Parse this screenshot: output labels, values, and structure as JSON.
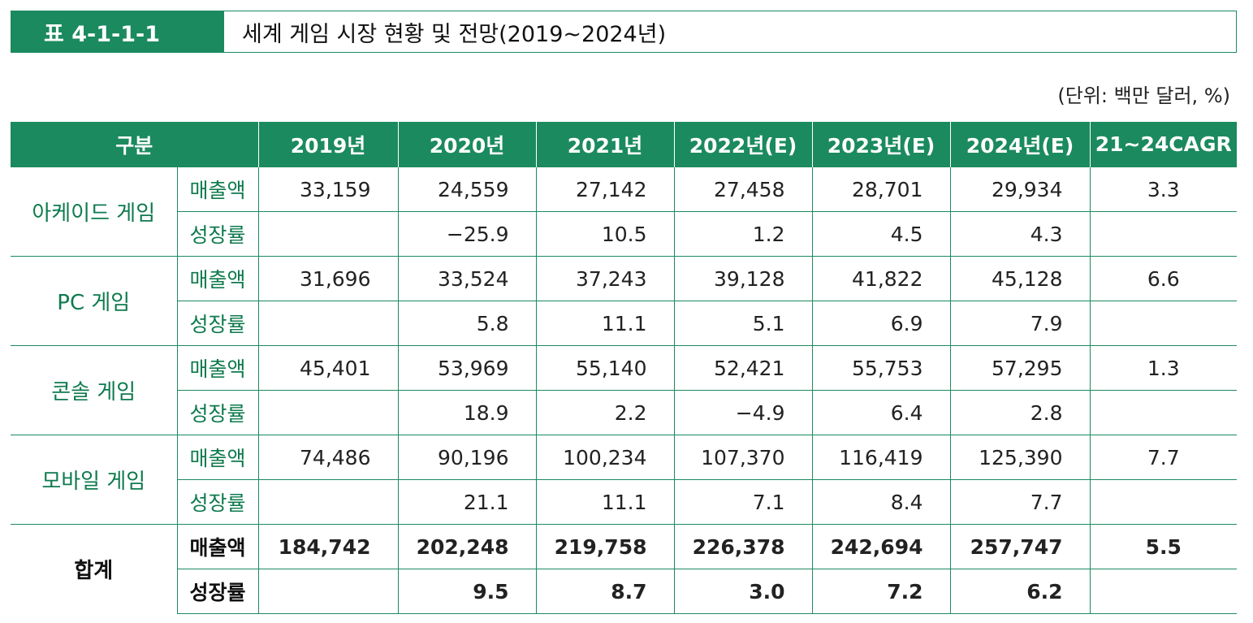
{
  "header": {
    "label": "표 4-1-1-1",
    "title": "세계 게임 시장 현황 및 전망(2019~2024년)",
    "unit": "(단위: 백만 달러, %)"
  },
  "table": {
    "columns": [
      "구분",
      "2019년",
      "2020년",
      "2021년",
      "2022년(E)",
      "2023년(E)",
      "2024년(E)",
      "21~24CAGR"
    ],
    "groups": [
      {
        "label": "아케이드 게임",
        "rows": [
          {
            "label": "매출액",
            "values": [
              "33,159",
              "24,559",
              "27,142",
              "27,458",
              "28,701",
              "29,934",
              "3.3"
            ]
          },
          {
            "label": "성장률",
            "values": [
              null,
              "−25.9",
              "10.5",
              "1.2",
              "4.5",
              "4.3",
              null
            ]
          }
        ]
      },
      {
        "label": "PC 게임",
        "rows": [
          {
            "label": "매출액",
            "values": [
              "31,696",
              "33,524",
              "37,243",
              "39,128",
              "41,822",
              "45,128",
              "6.6"
            ]
          },
          {
            "label": "성장률",
            "values": [
              null,
              "5.8",
              "11.1",
              "5.1",
              "6.9",
              "7.9",
              null
            ]
          }
        ]
      },
      {
        "label": "콘솔 게임",
        "rows": [
          {
            "label": "매출액",
            "values": [
              "45,401",
              "53,969",
              "55,140",
              "52,421",
              "55,753",
              "57,295",
              "1.3"
            ]
          },
          {
            "label": "성장률",
            "values": [
              null,
              "18.9",
              "2.2",
              "−4.9",
              "6.4",
              "2.8",
              null
            ]
          }
        ]
      },
      {
        "label": "모바일 게임",
        "rows": [
          {
            "label": "매출액",
            "values": [
              "74,486",
              "90,196",
              "100,234",
              "107,370",
              "116,419",
              "125,390",
              "7.7"
            ]
          },
          {
            "label": "성장률",
            "values": [
              null,
              "21.1",
              "11.1",
              "7.1",
              "8.4",
              "7.7",
              null
            ]
          }
        ]
      },
      {
        "label": "합계",
        "rows": [
          {
            "label": "매출액",
            "values": [
              "184,742",
              "202,248",
              "219,758",
              "226,378",
              "242,694",
              "257,747",
              "5.5"
            ]
          },
          {
            "label": "성장률",
            "values": [
              null,
              "9.5",
              "8.7",
              "3.0",
              "7.2",
              "6.2",
              null
            ]
          }
        ]
      }
    ]
  }
}
